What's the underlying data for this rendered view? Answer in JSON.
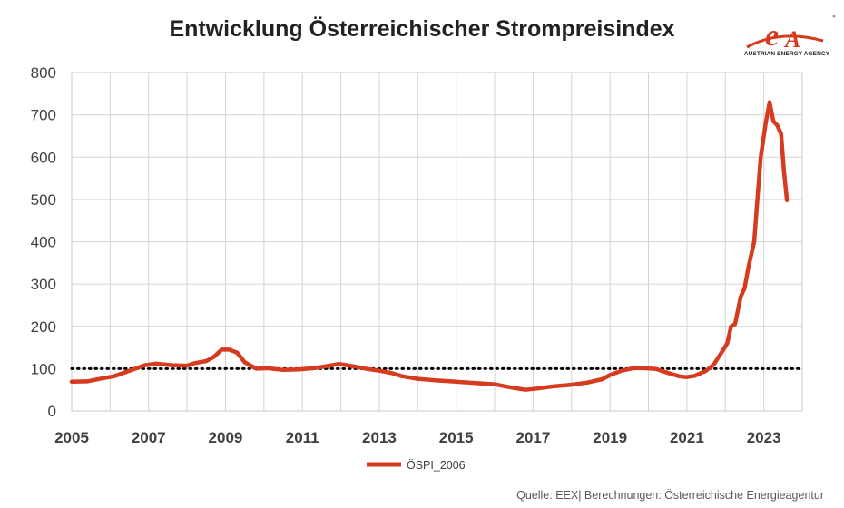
{
  "logo": {
    "text": "AUSTRIAN ENERGY AGENCY",
    "brand_color": "#d63a1f"
  },
  "source": "Quelle: EEX| Berechnungen: Österreichische Energieagentur",
  "chart_data": {
    "type": "line",
    "title": "Entwicklung Österreichischer Strompreisindex",
    "xlabel": "",
    "ylabel": "",
    "xlim": [
      2005,
      2024
    ],
    "ylim": [
      0,
      800
    ],
    "x_ticks": [
      "2005",
      "2007",
      "2009",
      "2011",
      "2013",
      "2015",
      "2017",
      "2019",
      "2021",
      "2023"
    ],
    "y_ticks": [
      "0",
      "100",
      "200",
      "300",
      "400",
      "500",
      "600",
      "700",
      "800"
    ],
    "grid": true,
    "legend_position": "bottom",
    "reference_line": {
      "y": 100,
      "style": "dotted",
      "color": "#000000"
    },
    "series": [
      {
        "name": "ÖSPI_2006",
        "color": "#d63a1f",
        "points": [
          [
            2005.0,
            69
          ],
          [
            2005.4,
            70
          ],
          [
            2005.8,
            77
          ],
          [
            2006.1,
            82
          ],
          [
            2006.5,
            95
          ],
          [
            2006.9,
            108
          ],
          [
            2007.2,
            112
          ],
          [
            2007.6,
            108
          ],
          [
            2008.0,
            107
          ],
          [
            2008.2,
            113
          ],
          [
            2008.5,
            118
          ],
          [
            2008.7,
            128
          ],
          [
            2008.9,
            145
          ],
          [
            2009.1,
            145
          ],
          [
            2009.3,
            138
          ],
          [
            2009.5,
            115
          ],
          [
            2009.8,
            100
          ],
          [
            2010.1,
            101
          ],
          [
            2010.5,
            97
          ],
          [
            2010.9,
            98
          ],
          [
            2011.3,
            101
          ],
          [
            2011.7,
            107
          ],
          [
            2011.95,
            111
          ],
          [
            2012.3,
            106
          ],
          [
            2012.7,
            99
          ],
          [
            2013.0,
            95
          ],
          [
            2013.3,
            90
          ],
          [
            2013.6,
            82
          ],
          [
            2014.0,
            76
          ],
          [
            2014.5,
            72
          ],
          [
            2015.0,
            69
          ],
          [
            2015.5,
            66
          ],
          [
            2016.0,
            63
          ],
          [
            2016.4,
            56
          ],
          [
            2016.8,
            50
          ],
          [
            2017.1,
            53
          ],
          [
            2017.5,
            58
          ],
          [
            2018.0,
            62
          ],
          [
            2018.4,
            67
          ],
          [
            2018.8,
            75
          ],
          [
            2019.0,
            85
          ],
          [
            2019.3,
            95
          ],
          [
            2019.6,
            101
          ],
          [
            2019.9,
            101
          ],
          [
            2020.2,
            99
          ],
          [
            2020.5,
            90
          ],
          [
            2020.8,
            82
          ],
          [
            2021.0,
            80
          ],
          [
            2021.2,
            83
          ],
          [
            2021.5,
            95
          ],
          [
            2021.7,
            110
          ],
          [
            2021.9,
            138
          ],
          [
            2022.05,
            160
          ],
          [
            2022.15,
            200
          ],
          [
            2022.25,
            205
          ],
          [
            2022.4,
            270
          ],
          [
            2022.5,
            290
          ],
          [
            2022.6,
            340
          ],
          [
            2022.75,
            400
          ],
          [
            2022.85,
            520
          ],
          [
            2022.92,
            600
          ],
          [
            2023.05,
            680
          ],
          [
            2023.15,
            730
          ],
          [
            2023.25,
            685
          ],
          [
            2023.35,
            675
          ],
          [
            2023.45,
            655
          ],
          [
            2023.52,
            570
          ],
          [
            2023.6,
            498
          ]
        ]
      }
    ]
  }
}
